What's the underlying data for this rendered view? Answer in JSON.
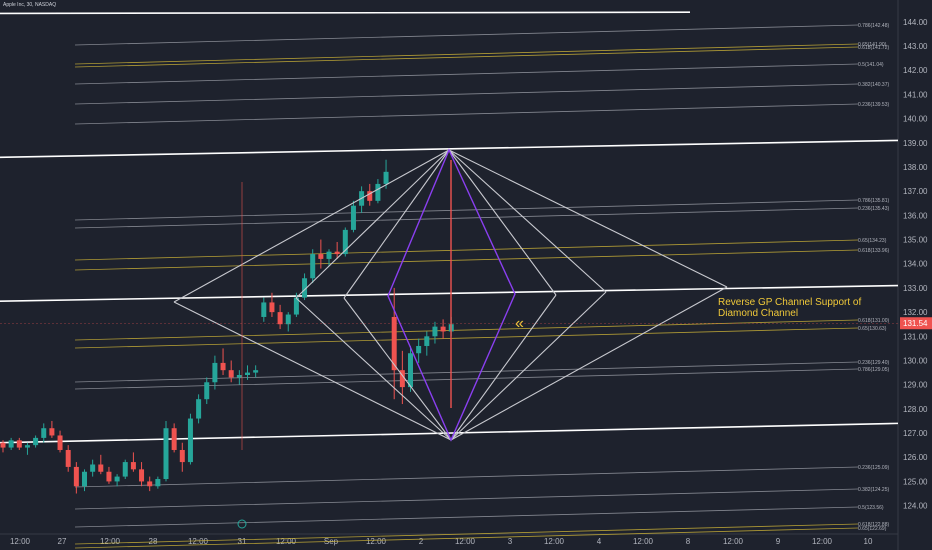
{
  "symbol_title": "Apple Inc, 30, NASDAQ",
  "annotation": "Reverse GP Channel Support of\nDiamond Channel",
  "chevron_marker": "«",
  "current_price_label": "131.54",
  "colors": {
    "background": "#1e222d",
    "candle_up": "#26a69a",
    "candle_down": "#ef5350",
    "channel": "#ffffff",
    "fib_gray": "#9598a1",
    "fib_gold": "#c9b037",
    "diamond": "#c8c9cf",
    "inner_diamond": "#8a3ff0",
    "annotation": "#f0c93a",
    "price_badge": "#ef5350"
  },
  "chart_data": {
    "type": "candlestick",
    "ylim": [
      123.55,
      144.4
    ],
    "y_ticks": [
      "124.00",
      "125.00",
      "126.00",
      "127.00",
      "128.00",
      "129.00",
      "130.00",
      "131.00",
      "132.00",
      "133.00",
      "134.00",
      "135.00",
      "136.00",
      "137.00",
      "138.00",
      "139.00",
      "140.00",
      "141.00",
      "142.00",
      "143.00",
      "144.00"
    ],
    "x_tick_labels": [
      "12:00",
      "27",
      "12:00",
      "28",
      "12:00",
      "31",
      "12:00",
      "Sep",
      "12:00",
      "2",
      "12:00",
      "3",
      "12:00",
      "4",
      "12:00",
      "8",
      "12:00",
      "9",
      "12:00",
      "10"
    ],
    "candles": [
      [
        126.6,
        126.7,
        126.2,
        126.4
      ],
      [
        126.4,
        126.8,
        126.3,
        126.7
      ],
      [
        126.7,
        126.8,
        126.3,
        126.4
      ],
      [
        126.4,
        126.6,
        126.1,
        126.5
      ],
      [
        126.5,
        126.9,
        126.4,
        126.8
      ],
      [
        126.8,
        127.4,
        126.6,
        127.2
      ],
      [
        127.2,
        127.5,
        126.8,
        126.9
      ],
      [
        126.9,
        127.1,
        126.2,
        126.3
      ],
      [
        126.3,
        126.5,
        125.4,
        125.6
      ],
      [
        125.6,
        125.8,
        124.5,
        124.8
      ],
      [
        124.8,
        125.5,
        124.6,
        125.4
      ],
      [
        125.4,
        125.9,
        125.2,
        125.7
      ],
      [
        125.7,
        126.1,
        125.3,
        125.4
      ],
      [
        125.4,
        125.6,
        124.9,
        125.0
      ],
      [
        125.0,
        125.3,
        124.8,
        125.2
      ],
      [
        125.2,
        125.9,
        125.1,
        125.8
      ],
      [
        125.8,
        126.2,
        125.4,
        125.5
      ],
      [
        125.5,
        125.8,
        124.8,
        125.0
      ],
      [
        125.0,
        125.2,
        124.6,
        124.8
      ],
      [
        124.8,
        125.2,
        124.7,
        125.1
      ],
      [
        125.1,
        127.5,
        125.0,
        127.2
      ],
      [
        127.2,
        127.4,
        126.2,
        126.3
      ],
      [
        126.3,
        126.6,
        125.4,
        125.8
      ],
      [
        125.8,
        127.8,
        125.7,
        127.6
      ],
      [
        127.6,
        128.6,
        127.4,
        128.4
      ],
      [
        128.4,
        129.3,
        128.2,
        129.1
      ],
      [
        129.1,
        130.2,
        128.8,
        129.9
      ],
      [
        129.9,
        130.5,
        129.4,
        129.6
      ],
      [
        129.6,
        130.0,
        129.1,
        129.3
      ],
      [
        129.3,
        129.6,
        129.0,
        129.4
      ],
      [
        129.4,
        129.8,
        129.2,
        129.5
      ],
      [
        129.5,
        129.8,
        129.3,
        129.6
      ],
      [
        131.8,
        132.6,
        131.6,
        132.4
      ],
      [
        132.4,
        132.8,
        131.8,
        132.0
      ],
      [
        132.0,
        132.3,
        131.3,
        131.5
      ],
      [
        131.5,
        132.0,
        131.2,
        131.9
      ],
      [
        131.9,
        132.8,
        131.8,
        132.6
      ],
      [
        132.6,
        133.6,
        132.5,
        133.4
      ],
      [
        133.4,
        134.6,
        133.2,
        134.4
      ],
      [
        134.4,
        135.0,
        133.8,
        134.2
      ],
      [
        134.2,
        134.6,
        133.9,
        134.5
      ],
      [
        134.5,
        134.9,
        134.2,
        134.4
      ],
      [
        134.4,
        135.5,
        134.3,
        135.4
      ],
      [
        135.4,
        136.6,
        135.3,
        136.4
      ],
      [
        136.4,
        137.2,
        136.1,
        137.0
      ],
      [
        137.0,
        137.3,
        136.4,
        136.6
      ],
      [
        136.6,
        137.5,
        136.5,
        137.3
      ],
      [
        137.3,
        138.3,
        137.1,
        137.8
      ],
      [
        131.8,
        133.0,
        128.4,
        129.6
      ],
      [
        129.6,
        130.4,
        128.2,
        128.9
      ],
      [
        128.9,
        130.6,
        128.7,
        130.3
      ],
      [
        130.3,
        130.9,
        129.9,
        130.6
      ],
      [
        130.6,
        131.2,
        130.2,
        131.0
      ],
      [
        131.0,
        131.6,
        130.7,
        131.4
      ],
      [
        131.4,
        131.7,
        130.9,
        131.2
      ],
      [
        131.2,
        131.8,
        131.0,
        131.5
      ]
    ],
    "channels": [
      {
        "from": [
          "12:00",
          138.4
        ],
        "to": [
          "10",
          139.1
        ]
      },
      {
        "from": [
          "12:00",
          132.45
        ],
        "to": [
          "10",
          133.1
        ]
      },
      {
        "from": [
          "12:00",
          126.6
        ],
        "to": [
          "10",
          127.4
        ]
      },
      {
        "from": [
          "12:00",
          144.35
        ],
        "to": [
          "9",
          144.4
        ]
      }
    ],
    "fib_levels_right": [
      {
        "label": "0.786(142.48)",
        "gold": false
      },
      {
        "label": "0.65(141.90)",
        "gold": true
      },
      {
        "label": "0.618(141.72)",
        "gold": true
      },
      {
        "label": "0.5(141.04)",
        "gold": false
      },
      {
        "label": "0.382(140.37)",
        "gold": false
      },
      {
        "label": "0.236(139.53)",
        "gold": false
      },
      {
        "label": "0.786(135.81)",
        "gold": false
      },
      {
        "label": "0.236(135.43)",
        "gold": false
      },
      {
        "label": "0.65(134.23)",
        "gold": true
      },
      {
        "label": "0.618(133.96)",
        "gold": true
      },
      {
        "label": "0.618(131.00)",
        "gold": true
      },
      {
        "label": "0.65(130.63)",
        "gold": true
      },
      {
        "label": "0.236(129.40)",
        "gold": false
      },
      {
        "label": "0.786(129.05)",
        "gold": false
      },
      {
        "label": "0.236(125.09)",
        "gold": false
      },
      {
        "label": "0.382(124.25)",
        "gold": false
      },
      {
        "label": "0.5(123.56)",
        "gold": false
      },
      {
        "label": "0.618(122.88)",
        "gold": true
      },
      {
        "label": "0.65(122.69)",
        "gold": true
      }
    ],
    "current_price": 131.54
  }
}
